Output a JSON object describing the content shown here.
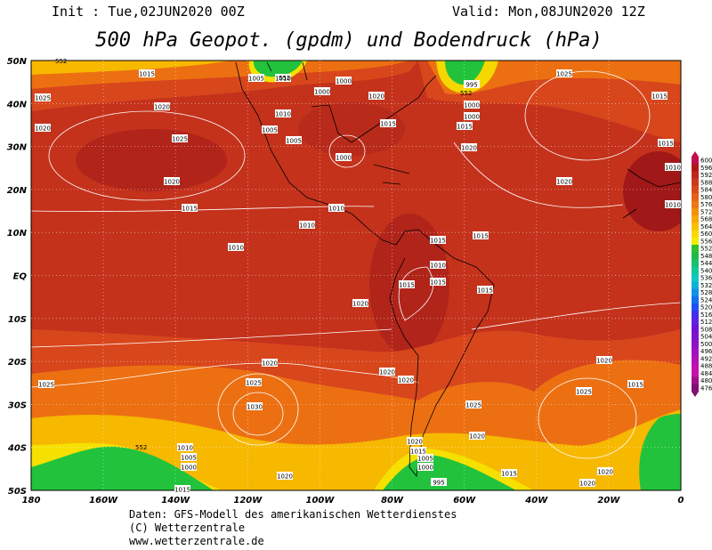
{
  "header": {
    "init": "Init : Tue,02JUN2020 00Z",
    "valid": "Valid: Mon,08JUN2020 12Z",
    "title": "500 hPa Geopot. (gpdm) und Bodendruck (hPa)"
  },
  "map": {
    "lat_labels": [
      "50N",
      "40N",
      "30N",
      "20N",
      "10N",
      "EQ",
      "10S",
      "20S",
      "30S",
      "40S",
      "50S"
    ],
    "lon_labels": [
      "180",
      "160W",
      "140W",
      "120W",
      "100W",
      "80W",
      "60W",
      "40W",
      "20W",
      "0"
    ],
    "isobar_labels": [
      "1015",
      "1025",
      "1020",
      "1020",
      "1025",
      "1020",
      "1015",
      "1010",
      "1010",
      "1005",
      "1010",
      "1000",
      "1005",
      "1000",
      "1020",
      "1015",
      "1010",
      "1005",
      "1010",
      "1000",
      "1025",
      "1015",
      "1020",
      "1015",
      "1010",
      "1015",
      "1015",
      "1010",
      "1015",
      "1015",
      "1015",
      "1020",
      "1025",
      "1030",
      "1020",
      "1020",
      "1020",
      "1025",
      "1020",
      "1025",
      "1015",
      "1010",
      "1005",
      "1000",
      "1020",
      "1015",
      "1005",
      "1000",
      "1020",
      "1020",
      "1015",
      "1020",
      "1015",
      "995",
      "1000",
      "995",
      "1000",
      "1015",
      "1020",
      "1025",
      "1020",
      "1010"
    ],
    "contour_labels": [
      "552",
      "552",
      "552",
      "552"
    ]
  },
  "colorbar": {
    "labels": [
      "600",
      "596",
      "592",
      "588",
      "584",
      "580",
      "576",
      "572",
      "568",
      "564",
      "560",
      "556",
      "552",
      "548",
      "544",
      "540",
      "536",
      "532",
      "528",
      "524",
      "520",
      "516",
      "512",
      "508",
      "504",
      "500",
      "496",
      "492",
      "488",
      "484",
      "480",
      "476"
    ]
  },
  "footer": {
    "lines": [
      "Daten: GFS-Modell des amerikanischen Wetterdienstes",
      "(C) Wetterzentrale",
      "www.wetterzentrale.de"
    ]
  }
}
